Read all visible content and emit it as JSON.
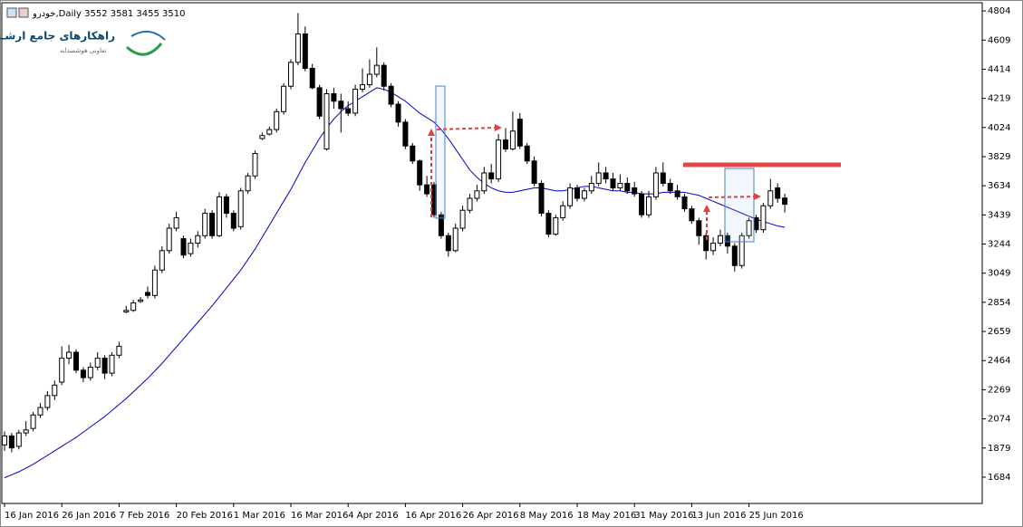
{
  "chart_data": {
    "type": "candlestick",
    "title": "خودرو,Daily  3552 3581 3455 3510",
    "watermark": {
      "name": "راهکارهای جامع ارشـن",
      "tagline": "تعاونی هوشمندانه"
    },
    "categories": [
      "16 Jan 2016",
      null,
      null,
      null,
      null,
      null,
      null,
      null,
      "26 Jan 2016",
      null,
      null,
      null,
      null,
      null,
      null,
      null,
      "7 Feb 2016",
      null,
      null,
      null,
      null,
      null,
      null,
      null,
      "20 Feb 2016",
      null,
      null,
      null,
      null,
      null,
      null,
      null,
      "1 Mar 2016",
      null,
      null,
      null,
      null,
      null,
      null,
      null,
      "16 Mar 2016",
      null,
      null,
      null,
      null,
      null,
      null,
      null,
      "4 Apr 2016",
      null,
      null,
      null,
      null,
      null,
      null,
      null,
      "16 Apr 2016",
      null,
      null,
      null,
      null,
      null,
      null,
      null,
      "26 Apr 2016",
      null,
      null,
      null,
      null,
      null,
      null,
      null,
      "8 May 2016",
      null,
      null,
      null,
      null,
      null,
      null,
      null,
      "18 May 2016",
      null,
      null,
      null,
      null,
      null,
      null,
      null,
      "31 May 2016",
      null,
      null,
      null,
      null,
      null,
      null,
      null,
      "13 Jun 2016",
      null,
      null,
      null,
      null,
      null,
      null,
      null,
      "25 Jun 2016",
      null,
      null,
      null,
      null,
      null
    ],
    "candles": [
      [
        1900,
        1990,
        1860,
        1960
      ],
      [
        1960,
        1980,
        1850,
        1880
      ],
      [
        1890,
        2000,
        1870,
        1980
      ],
      [
        1980,
        2060,
        1960,
        2000
      ],
      [
        2010,
        2120,
        1990,
        2100
      ],
      [
        2100,
        2180,
        2080,
        2150
      ],
      [
        2150,
        2260,
        2130,
        2230
      ],
      [
        2230,
        2330,
        2200,
        2300
      ],
      [
        2320,
        2560,
        2300,
        2480
      ],
      [
        2480,
        2570,
        2440,
        2520
      ],
      [
        2520,
        2540,
        2380,
        2400
      ],
      [
        2400,
        2420,
        2320,
        2350
      ],
      [
        2350,
        2450,
        2330,
        2420
      ],
      [
        2420,
        2520,
        2400,
        2480
      ],
      [
        2480,
        2500,
        2340,
        2380
      ],
      [
        2380,
        2520,
        2360,
        2500
      ],
      [
        2500,
        2590,
        2480,
        2560
      ],
      [
        2790,
        2830,
        2780,
        2800
      ],
      [
        2800,
        2870,
        2790,
        2850
      ],
      [
        2860,
        2890,
        2850,
        2870
      ],
      [
        2920,
        2960,
        2880,
        2900
      ],
      [
        2900,
        3100,
        2880,
        3070
      ],
      [
        3070,
        3230,
        3050,
        3200
      ],
      [
        3200,
        3380,
        3180,
        3350
      ],
      [
        3350,
        3460,
        3330,
        3420
      ],
      [
        3280,
        3300,
        3150,
        3170
      ],
      [
        3180,
        3280,
        3160,
        3250
      ],
      [
        3250,
        3330,
        3220,
        3300
      ],
      [
        3300,
        3480,
        3280,
        3450
      ],
      [
        3450,
        3470,
        3280,
        3300
      ],
      [
        3300,
        3590,
        3290,
        3560
      ],
      [
        3560,
        3580,
        3420,
        3450
      ],
      [
        3450,
        3470,
        3330,
        3350
      ],
      [
        3360,
        3620,
        3340,
        3600
      ],
      [
        3600,
        3720,
        3580,
        3700
      ],
      [
        3700,
        3870,
        3680,
        3850
      ],
      [
        3950,
        3990,
        3940,
        3970
      ],
      [
        3980,
        4030,
        3970,
        4010
      ],
      [
        4010,
        4150,
        3990,
        4130
      ],
      [
        4130,
        4320,
        4110,
        4300
      ],
      [
        4300,
        4480,
        4280,
        4460
      ],
      [
        4460,
        4790,
        4440,
        4650
      ],
      [
        4650,
        4700,
        4400,
        4420
      ],
      [
        4420,
        4450,
        4280,
        4290
      ],
      [
        4290,
        4310,
        4080,
        4100
      ],
      [
        3880,
        4280,
        3870,
        4250
      ],
      [
        4250,
        4290,
        4150,
        4200
      ],
      [
        4200,
        4250,
        3990,
        4150
      ],
      [
        4150,
        4200,
        4100,
        4120
      ],
      [
        4120,
        4310,
        4100,
        4280
      ],
      [
        4280,
        4420,
        4260,
        4310
      ],
      [
        4310,
        4480,
        4290,
        4380
      ],
      [
        4380,
        4560,
        4360,
        4440
      ],
      [
        4440,
        4460,
        4270,
        4300
      ],
      [
        4300,
        4320,
        4160,
        4180
      ],
      [
        4180,
        4200,
        4030,
        4060
      ],
      [
        4060,
        4080,
        3880,
        3900
      ],
      [
        3900,
        3920,
        3780,
        3800
      ],
      [
        3800,
        3810,
        3600,
        3640
      ],
      [
        3640,
        3700,
        3560,
        3580
      ],
      [
        3640,
        3660,
        3420,
        3440
      ],
      [
        3440,
        3460,
        3280,
        3300
      ],
      [
        3300,
        3320,
        3160,
        3200
      ],
      [
        3200,
        3380,
        3190,
        3350
      ],
      [
        3350,
        3500,
        3330,
        3470
      ],
      [
        3470,
        3580,
        3450,
        3550
      ],
      [
        3550,
        3640,
        3530,
        3600
      ],
      [
        3600,
        3760,
        3580,
        3720
      ],
      [
        3720,
        3780,
        3650,
        3680
      ],
      [
        3680,
        3980,
        3660,
        3940
      ],
      [
        3940,
        4020,
        3860,
        3880
      ],
      [
        3880,
        4130,
        3870,
        4000
      ],
      [
        4080,
        4120,
        3880,
        3900
      ],
      [
        3900,
        3920,
        3780,
        3800
      ],
      [
        3800,
        3830,
        3630,
        3650
      ],
      [
        3650,
        3670,
        3430,
        3450
      ],
      [
        3450,
        3470,
        3290,
        3310
      ],
      [
        3310,
        3440,
        3300,
        3420
      ],
      [
        3420,
        3530,
        3400,
        3500
      ],
      [
        3500,
        3650,
        3480,
        3620
      ],
      [
        3620,
        3640,
        3530,
        3550
      ],
      [
        3550,
        3620,
        3530,
        3600
      ],
      [
        3600,
        3700,
        3580,
        3650
      ],
      [
        3650,
        3790,
        3630,
        3720
      ],
      [
        3720,
        3760,
        3650,
        3680
      ],
      [
        3680,
        3720,
        3600,
        3620
      ],
      [
        3620,
        3710,
        3600,
        3650
      ],
      [
        3650,
        3690,
        3580,
        3600
      ],
      [
        3620,
        3660,
        3560,
        3580
      ],
      [
        3580,
        3600,
        3420,
        3440
      ],
      [
        3440,
        3600,
        3420,
        3560
      ],
      [
        3560,
        3760,
        3540,
        3720
      ],
      [
        3720,
        3790,
        3630,
        3650
      ],
      [
        3650,
        3680,
        3580,
        3600
      ],
      [
        3600,
        3640,
        3540,
        3560
      ],
      [
        3560,
        3580,
        3460,
        3480
      ],
      [
        3480,
        3500,
        3380,
        3400
      ],
      [
        3400,
        3420,
        3240,
        3300
      ],
      [
        3300,
        3320,
        3140,
        3200
      ],
      [
        3200,
        3290,
        3170,
        3250
      ],
      [
        3250,
        3340,
        3230,
        3300
      ],
      [
        3300,
        3320,
        3180,
        3230
      ],
      [
        3230,
        3250,
        3060,
        3100
      ],
      [
        3100,
        3320,
        3080,
        3300
      ],
      [
        3300,
        3420,
        3280,
        3400
      ],
      [
        3420,
        3440,
        3320,
        3340
      ],
      [
        3340,
        3520,
        3320,
        3500
      ],
      [
        3500,
        3680,
        3480,
        3600
      ],
      [
        3620,
        3650,
        3520,
        3550
      ],
      [
        3552,
        3581,
        3455,
        3510
      ]
    ],
    "up_color": "#ffffff",
    "down_color": "#000000",
    "series": [
      {
        "color": "#0000cc",
        "values": [
          1680,
          1700,
          1720,
          1745,
          1770,
          1800,
          1830,
          1860,
          1890,
          1920,
          1950,
          1985,
          2020,
          2055,
          2090,
          2130,
          2170,
          2210,
          2255,
          2300,
          2345,
          2395,
          2445,
          2500,
          2555,
          2610,
          2665,
          2720,
          2775,
          2830,
          2890,
          2950,
          3010,
          3070,
          3140,
          3210,
          3290,
          3370,
          3450,
          3530,
          3610,
          3700,
          3790,
          3870,
          3950,
          4020,
          4080,
          4130,
          4170,
          4200,
          4230,
          4260,
          4290,
          4280,
          4260,
          4230,
          4200,
          4160,
          4120,
          4090,
          4060,
          4010,
          3950,
          3880,
          3810,
          3740,
          3690,
          3650,
          3620,
          3600,
          3590,
          3590,
          3600,
          3610,
          3620,
          3620,
          3610,
          3600,
          3600,
          3610,
          3620,
          3630,
          3630,
          3620,
          3610,
          3600,
          3600,
          3590,
          3590,
          3580,
          3580,
          3580,
          3590,
          3590,
          3590,
          3590,
          3580,
          3570,
          3550,
          3530,
          3510,
          3490,
          3470,
          3450,
          3430,
          3410,
          3395,
          3380,
          3365,
          3356
        ]
      }
    ],
    "ylim": [
      1508,
      4859
    ],
    "yticks": [
      1684,
      1879,
      2074,
      2269,
      2464,
      2659,
      2854,
      3049,
      3244,
      3439,
      3634,
      3829,
      4024,
      4219,
      4414,
      4609,
      4804
    ],
    "grid": false
  }
}
